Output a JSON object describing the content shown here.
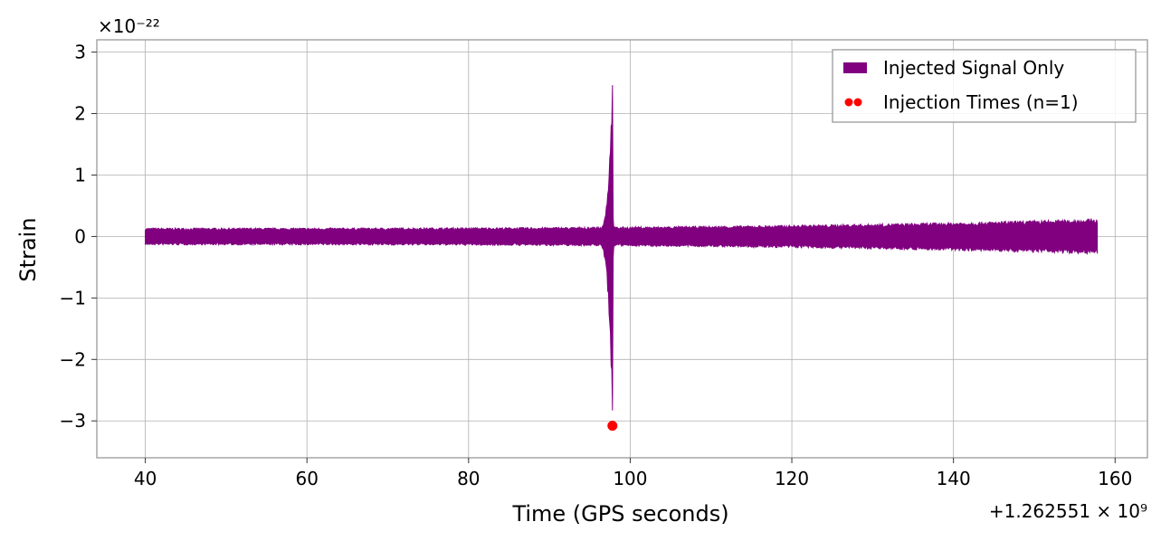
{
  "chart_data": {
    "type": "line",
    "xlabel": "Time (GPS seconds)",
    "ylabel": "Strain",
    "x_offset_label": "+1.262551 × 10⁹",
    "y_scale_label": "×10⁻²²",
    "xlim": [
      34,
      164
    ],
    "ylim": [
      -3.6,
      3.2
    ],
    "x_ticks": [
      40,
      60,
      80,
      100,
      120,
      140,
      160
    ],
    "x_tick_labels": [
      "40",
      "60",
      "80",
      "100",
      "120",
      "140",
      "160"
    ],
    "y_ticks": [
      3,
      2,
      1,
      0,
      -1,
      -2,
      -3
    ],
    "y_tick_labels": [
      "3",
      "2",
      "1",
      "0",
      "−1",
      "−2",
      "−3"
    ],
    "grid": true,
    "legend_position": "top-right",
    "series": [
      {
        "name": "Injected Signal Only",
        "color": "#800080",
        "x_range": [
          40,
          157.8
        ],
        "baseline_amplitude": 0.12,
        "end_amplitude": 0.25,
        "peak_x": 97.8,
        "peak_max": 2.87,
        "peak_min": -3.3
      },
      {
        "name": "Injection Times (n=1)",
        "color": "#ff0000",
        "marker": "circle",
        "points": [
          {
            "x": 97.8,
            "y": -3.08
          }
        ]
      }
    ]
  }
}
